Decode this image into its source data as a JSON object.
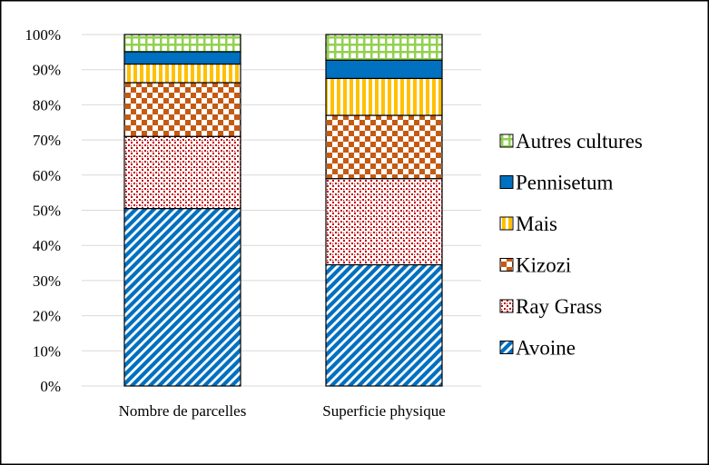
{
  "chart_data": {
    "type": "bar",
    "stacked": true,
    "percent": true,
    "categories": [
      "Nombre de parcelles",
      "Superficie physique"
    ],
    "series": [
      {
        "name": "Avoine",
        "values": [
          50.5,
          34.5
        ],
        "color": "#0070C0",
        "pattern": "diagonal-stripes"
      },
      {
        "name": "Ray Grass",
        "values": [
          20.5,
          24.5
        ],
        "color": "#C00000",
        "pattern": "dots"
      },
      {
        "name": "Kizozi",
        "values": [
          15.3,
          18.0
        ],
        "color": "#C55A11",
        "pattern": "checker"
      },
      {
        "name": "Mais",
        "values": [
          5.3,
          10.5
        ],
        "color": "#FFC000",
        "pattern": "vertical-stripes"
      },
      {
        "name": "Pennisetum",
        "values": [
          3.5,
          5.2
        ],
        "color": "#0070C0",
        "pattern": "solid"
      },
      {
        "name": "Autres cultures",
        "values": [
          4.9,
          7.3
        ],
        "color": "#92D050",
        "pattern": "grid"
      }
    ],
    "y_ticks": [
      "0%",
      "10%",
      "20%",
      "30%",
      "40%",
      "50%",
      "60%",
      "70%",
      "80%",
      "90%",
      "100%"
    ],
    "ylim": [
      0,
      100
    ],
    "grid": "horizontal",
    "legend_position": "right",
    "title": "",
    "xlabel": "",
    "ylabel": ""
  }
}
